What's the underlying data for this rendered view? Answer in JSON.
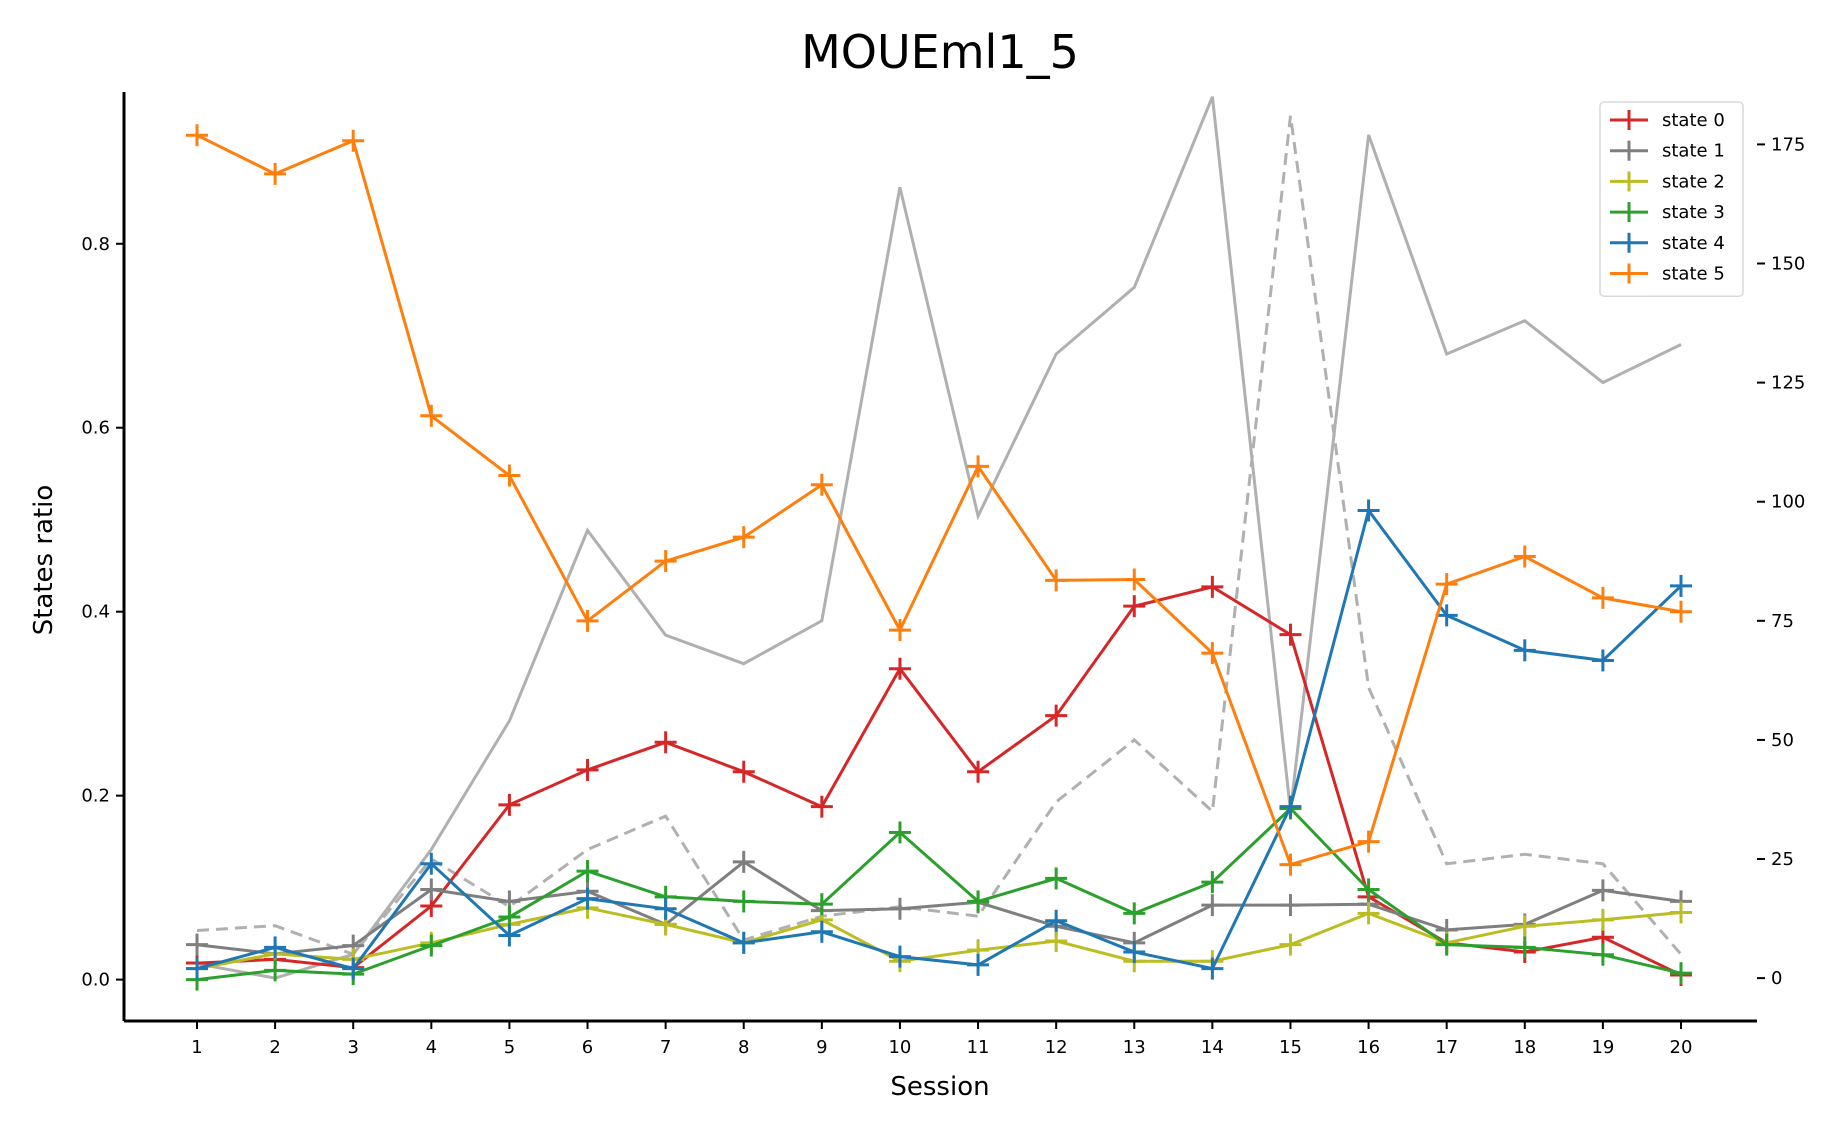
{
  "chart_data": {
    "type": "line",
    "title": "MOUEml1_5",
    "xlabel": "Session",
    "ylabel": "States ratio",
    "x": [
      1,
      2,
      3,
      4,
      5,
      6,
      7,
      8,
      9,
      10,
      11,
      12,
      13,
      14,
      15,
      16,
      17,
      18,
      19,
      20
    ],
    "ylim": [
      -0.045,
      0.965
    ],
    "y2lim": [
      -9,
      186
    ],
    "yticks": [
      "0.0",
      "0.2",
      "0.4",
      "0.6",
      "0.8"
    ],
    "y2ticks": [
      "0",
      "25",
      "50",
      "75",
      "100",
      "125",
      "150",
      "175"
    ],
    "legend_position": "top-right",
    "series": [
      {
        "name": "state 0",
        "color": "#d62728",
        "values": [
          0.018,
          0.022,
          0.013,
          0.08,
          0.19,
          0.228,
          0.258,
          0.226,
          0.188,
          0.338,
          0.226,
          0.287,
          0.406,
          0.427,
          0.375,
          0.09,
          0.04,
          0.03,
          0.046,
          0.005
        ]
      },
      {
        "name": "state 1",
        "color": "#7f7f7f",
        "values": [
          0.038,
          0.028,
          0.037,
          0.098,
          0.085,
          0.096,
          0.06,
          0.128,
          0.075,
          0.077,
          0.084,
          0.058,
          0.04,
          0.081,
          0.081,
          0.082,
          0.054,
          0.06,
          0.097,
          0.085
        ]
      },
      {
        "name": "state 2",
        "color": "#bcbd22",
        "values": [
          0.012,
          0.028,
          0.022,
          0.04,
          0.06,
          0.078,
          0.06,
          0.04,
          0.065,
          0.02,
          0.032,
          0.042,
          0.02,
          0.02,
          0.038,
          0.072,
          0.04,
          0.058,
          0.065,
          0.073
        ]
      },
      {
        "name": "state 3",
        "color": "#2ca02c",
        "values": [
          0.0,
          0.01,
          0.006,
          0.037,
          0.068,
          0.118,
          0.09,
          0.085,
          0.082,
          0.16,
          0.085,
          0.11,
          0.072,
          0.106,
          0.186,
          0.098,
          0.038,
          0.035,
          0.027,
          0.007
        ]
      },
      {
        "name": "state 4",
        "color": "#1f77b4",
        "values": [
          0.012,
          0.035,
          0.012,
          0.126,
          0.048,
          0.088,
          0.077,
          0.04,
          0.052,
          0.025,
          0.016,
          0.064,
          0.03,
          0.012,
          0.188,
          0.51,
          0.396,
          0.358,
          0.347,
          0.428
        ]
      },
      {
        "name": "state 5",
        "color": "#ff7f0e",
        "values": [
          0.918,
          0.876,
          0.912,
          0.613,
          0.548,
          0.39,
          0.455,
          0.481,
          0.538,
          0.38,
          0.558,
          0.434,
          0.435,
          0.355,
          0.125,
          0.15,
          0.43,
          0.46,
          0.415,
          0.4
        ]
      }
    ],
    "secondary_series": [
      {
        "axis": "right",
        "style": "solid",
        "color": "#b0b0b0",
        "values": [
          3,
          0,
          5,
          27,
          54,
          94,
          72,
          66,
          75,
          166,
          97,
          131,
          145,
          185,
          35,
          177,
          131,
          138,
          125,
          133
        ]
      },
      {
        "axis": "right",
        "style": "dashed",
        "color": "#b0b0b0",
        "values": [
          10,
          11,
          5,
          25,
          15,
          27,
          34,
          8,
          13,
          15,
          13,
          37,
          50,
          35,
          181,
          61,
          24,
          26,
          24,
          5
        ]
      }
    ]
  }
}
